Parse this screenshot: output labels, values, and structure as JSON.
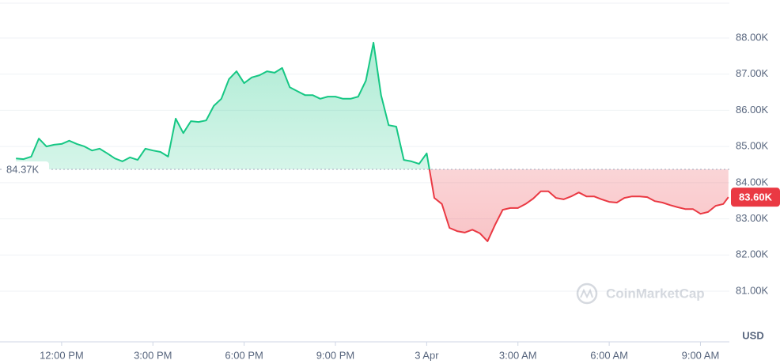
{
  "chart_data": {
    "type": "line",
    "x": [
      10.5,
      10.75,
      11,
      11.25,
      11.5,
      11.75,
      12,
      12.25,
      12.5,
      12.75,
      13,
      13.25,
      13.5,
      13.75,
      14,
      14.25,
      14.5,
      14.75,
      15,
      15.25,
      15.5,
      15.75,
      16,
      16.25,
      16.5,
      16.75,
      17,
      17.25,
      17.5,
      17.75,
      18,
      18.25,
      18.5,
      18.75,
      19,
      19.25,
      19.5,
      19.75,
      20,
      20.25,
      20.5,
      20.75,
      21,
      21.25,
      21.5,
      21.75,
      22,
      22.25,
      22.5,
      22.75,
      23,
      23.25,
      23.5,
      23.75,
      24,
      24.25,
      24.5,
      24.75,
      25,
      25.25,
      25.5,
      25.75,
      26,
      26.25,
      26.5,
      26.75,
      27,
      27.25,
      27.5,
      27.75,
      28,
      28.25,
      28.5,
      28.75,
      29,
      29.25,
      29.5,
      29.75,
      30,
      30.25,
      30.5,
      30.75,
      31,
      31.25,
      31.5,
      31.75,
      32,
      32.25,
      32.5,
      32.75,
      33,
      33.25,
      33.5,
      33.75,
      33.92
    ],
    "values": [
      84670,
      84650,
      84720,
      85220,
      85000,
      85050,
      85070,
      85160,
      85070,
      85000,
      84890,
      84940,
      84810,
      84670,
      84590,
      84700,
      84630,
      84940,
      84890,
      84850,
      84720,
      85770,
      85370,
      85700,
      85680,
      85720,
      86120,
      86320,
      86860,
      87080,
      86750,
      86910,
      86970,
      87080,
      87040,
      87170,
      86640,
      86530,
      86420,
      86420,
      86320,
      86380,
      86380,
      86320,
      86320,
      86380,
      86820,
      87870,
      86420,
      85590,
      85550,
      84630,
      84590,
      84520,
      84810,
      83580,
      83410,
      82750,
      82660,
      82620,
      82700,
      82600,
      82380,
      82840,
      83250,
      83300,
      83300,
      83410,
      83560,
      83760,
      83760,
      83580,
      83540,
      83620,
      83730,
      83620,
      83620,
      83540,
      83470,
      83450,
      83580,
      83620,
      83620,
      83600,
      83490,
      83450,
      83380,
      83320,
      83270,
      83270,
      83140,
      83190,
      83360,
      83410,
      83600
    ],
    "xlim": [
      10,
      33.95
    ],
    "xticks": [
      {
        "value": 12,
        "label": "12:00 PM"
      },
      {
        "value": 15,
        "label": "3:00 PM"
      },
      {
        "value": 18,
        "label": "6:00 PM"
      },
      {
        "value": 21,
        "label": "9:00 PM"
      },
      {
        "value": 24,
        "label": "3 Apr"
      },
      {
        "value": 27,
        "label": "3:00 AM"
      },
      {
        "value": 30,
        "label": "6:00 AM"
      },
      {
        "value": 33,
        "label": "9:00 AM"
      }
    ],
    "ylim": [
      79600,
      89050
    ],
    "yticks": [
      {
        "value": 81000,
        "label": "81.00K"
      },
      {
        "value": 82000,
        "label": "82.00K"
      },
      {
        "value": 83000,
        "label": "83.00K"
      },
      {
        "value": 84000,
        "label": "84.00K"
      },
      {
        "value": 85000,
        "label": "85.00K"
      },
      {
        "value": 86000,
        "label": "86.00K"
      },
      {
        "value": 87000,
        "label": "87.00K"
      },
      {
        "value": 88000,
        "label": "88.00K"
      }
    ],
    "baseline": {
      "value": 84370,
      "label": "84.37K"
    },
    "current_label": "83.60K",
    "y_axis_label": "USD",
    "watermark": "CoinMarketCap",
    "up_color": "#16c784",
    "down_color": "#ea3943",
    "grid": true
  }
}
